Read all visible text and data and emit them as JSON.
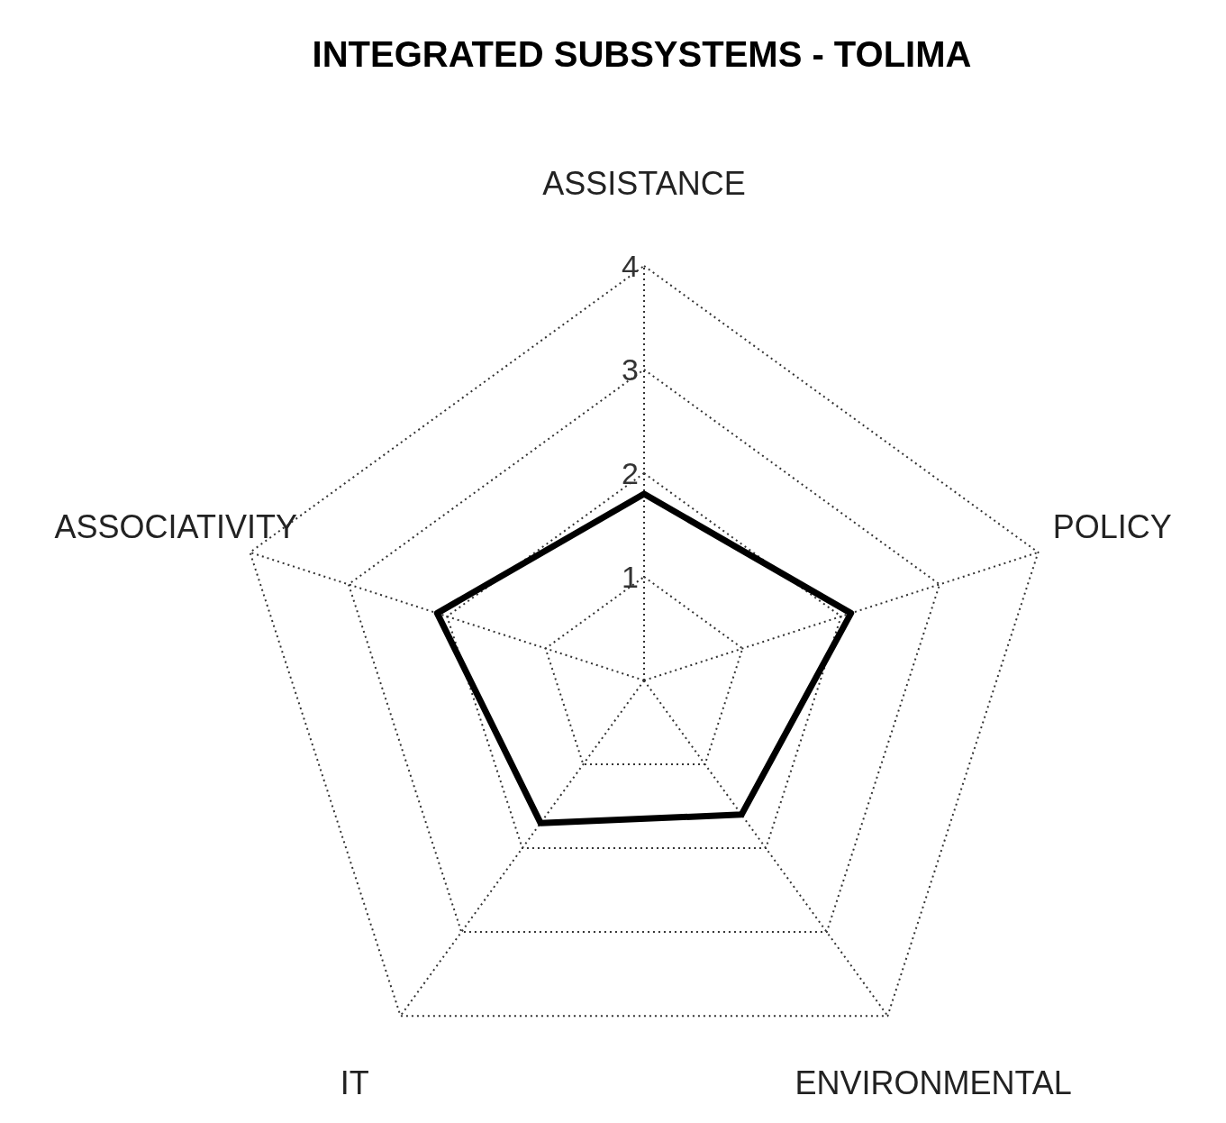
{
  "chart_data": {
    "type": "radar",
    "title": "INTEGRATED SUBSYSTEMS - TOLIMA",
    "categories": [
      "ASSISTANCE",
      "POLICY",
      "ENVIRONMENTAL",
      "IT",
      "ASSOCIATIVITY"
    ],
    "series": [
      {
        "color": "#000000",
        "values": [
          1.8,
          2.1,
          1.6,
          1.7,
          2.1
        ]
      }
    ],
    "ylim": [
      0,
      4
    ],
    "yticks": [
      1,
      2,
      3,
      4
    ],
    "grid": true
  }
}
